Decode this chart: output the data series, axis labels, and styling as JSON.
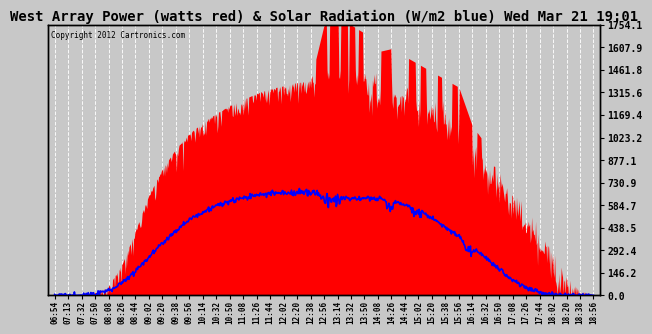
{
  "title": "West Array Power (watts red) & Solar Radiation (W/m2 blue) Wed Mar 21 19:01",
  "copyright": "Copyright 2012 Cartronics.com",
  "yticks": [
    0.0,
    146.2,
    292.4,
    438.5,
    584.7,
    730.9,
    877.1,
    1023.2,
    1169.4,
    1315.6,
    1461.8,
    1607.9,
    1754.1
  ],
  "ytick_labels": [
    "0.0",
    "146.2",
    "292.4",
    "438.5",
    "584.7",
    "730.9",
    "877.1",
    "1023.2",
    "1169.4",
    "1315.6",
    "1461.8",
    "1607.9",
    "1754.1"
  ],
  "ymax": 1754.1,
  "bg_color": "#c8c8c8",
  "red_color": "#ff0000",
  "blue_color": "#0000ff",
  "grid_color": "#ffffff",
  "title_fontsize": 10,
  "xtick_labels": [
    "06:54",
    "07:13",
    "07:32",
    "07:50",
    "08:08",
    "08:26",
    "08:44",
    "09:02",
    "09:20",
    "09:38",
    "09:56",
    "10:14",
    "10:32",
    "10:50",
    "11:08",
    "11:26",
    "11:44",
    "12:02",
    "12:20",
    "12:38",
    "12:56",
    "13:14",
    "13:32",
    "13:50",
    "14:08",
    "14:26",
    "14:44",
    "15:02",
    "15:20",
    "15:38",
    "15:56",
    "16:14",
    "16:32",
    "16:50",
    "17:08",
    "17:26",
    "17:44",
    "18:02",
    "18:20",
    "18:38",
    "18:56"
  ],
  "red_envelope": [
    0,
    0,
    0,
    20,
    60,
    200,
    420,
    650,
    820,
    950,
    1050,
    1120,
    1180,
    1230,
    1270,
    1310,
    1340,
    1360,
    1380,
    1390,
    1754,
    1754,
    1754,
    1700,
    1580,
    1600,
    1550,
    1500,
    1450,
    1400,
    1350,
    1100,
    980,
    880,
    750,
    600,
    430,
    280,
    120,
    30,
    0
  ],
  "red_base": [
    0,
    0,
    0,
    20,
    60,
    200,
    420,
    650,
    820,
    950,
    1050,
    1120,
    1180,
    1230,
    1270,
    1310,
    1340,
    1360,
    1380,
    1390,
    1400,
    1410,
    1380,
    1350,
    1300,
    1280,
    1250,
    1200,
    1150,
    1100,
    1050,
    900,
    800,
    700,
    580,
    450,
    320,
    200,
    80,
    20,
    0
  ],
  "blue_values": [
    0,
    0,
    0,
    10,
    30,
    80,
    160,
    250,
    340,
    420,
    490,
    540,
    580,
    610,
    630,
    650,
    660,
    665,
    668,
    665,
    655,
    640,
    625,
    630,
    628,
    610,
    590,
    560,
    500,
    440,
    380,
    310,
    240,
    170,
    100,
    50,
    20,
    5,
    0,
    0,
    0
  ]
}
